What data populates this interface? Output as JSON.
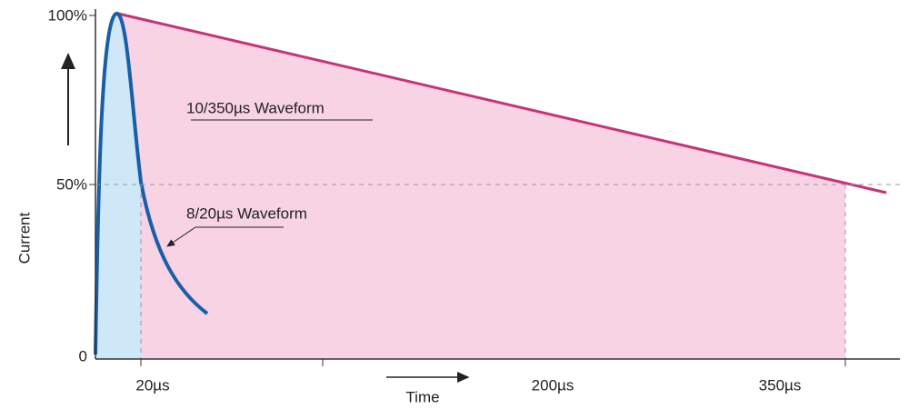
{
  "axis": {
    "y_labels": [
      "100%",
      "50%",
      "0"
    ],
    "y_title": "Current",
    "x_labels": [
      "20µs",
      "200µs",
      "350µs"
    ],
    "x_title": "Time"
  },
  "waveforms": [
    {
      "label": "10/350µs Waveform"
    },
    {
      "label": "8/20µs Waveform"
    }
  ]
}
